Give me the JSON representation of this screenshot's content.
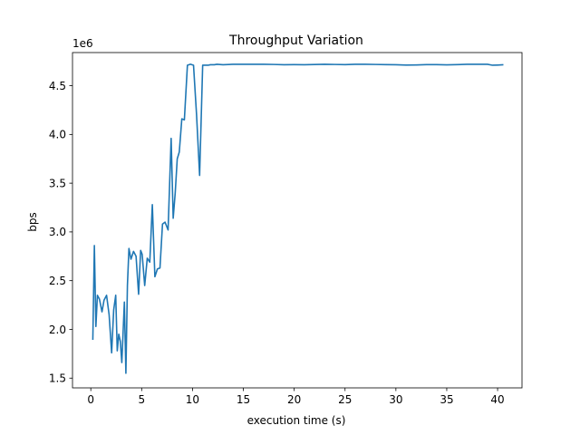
{
  "chart_data": {
    "type": "line",
    "title": "Throughput Variation",
    "xlabel": "execution time (s)",
    "ylabel": "bps",
    "y_offset_label": "1e6",
    "y_scale": 1000000,
    "xlim": [
      -1.8,
      42.4
    ],
    "ylim": [
      1400000,
      4840000
    ],
    "x_ticks": [
      0,
      5,
      10,
      15,
      20,
      25,
      30,
      35,
      40
    ],
    "y_ticks": [
      1500000,
      2000000,
      2500000,
      3000000,
      3500000,
      4000000,
      4500000
    ],
    "y_tick_labels": [
      "1.5",
      "2.0",
      "2.5",
      "3.0",
      "3.5",
      "4.0",
      "4.5"
    ],
    "grid": false,
    "line_color": "#1f77b4",
    "series": [
      {
        "x": [
          0.2,
          0.35,
          0.5,
          0.65,
          0.85,
          1.1,
          1.3,
          1.55,
          1.8,
          2.05,
          2.25,
          2.45,
          2.6,
          2.75,
          2.9,
          3.05,
          3.3,
          3.45,
          3.6,
          3.75,
          3.95,
          4.2,
          4.45,
          4.7,
          4.9,
          5.05,
          5.3,
          5.55,
          5.8,
          6.05,
          6.3,
          6.55,
          6.8,
          7.05,
          7.3,
          7.6,
          7.9,
          8.1,
          8.3,
          8.5,
          8.7,
          8.95,
          9.2,
          9.5,
          9.8,
          10.1,
          10.4,
          10.7,
          11.0,
          11.3,
          11.55,
          11.75,
          11.95,
          12.15,
          12.4,
          13,
          14,
          15,
          16,
          17,
          18,
          19,
          20,
          21,
          22,
          23,
          24,
          25,
          26,
          27,
          28,
          29,
          30,
          31,
          32,
          33,
          34,
          35,
          36,
          37,
          38,
          39,
          39.5,
          40,
          40.5
        ],
        "y": [
          1900000,
          2860000,
          2030000,
          2350000,
          2310000,
          2180000,
          2300000,
          2350000,
          2150000,
          1760000,
          2200000,
          2350000,
          1780000,
          1950000,
          1880000,
          1660000,
          2280000,
          1550000,
          2450000,
          2830000,
          2720000,
          2800000,
          2750000,
          2360000,
          2810000,
          2770000,
          2450000,
          2730000,
          2690000,
          3280000,
          2540000,
          2620000,
          2630000,
          3080000,
          3100000,
          3020000,
          3960000,
          3140000,
          3400000,
          3750000,
          3820000,
          4160000,
          4150000,
          4710000,
          4720000,
          4710000,
          4200000,
          3580000,
          4710000,
          4710000,
          4710000,
          4715000,
          4715000,
          4715000,
          4720000,
          4715000,
          4720000,
          4720000,
          4720000,
          4720000,
          4718000,
          4715000,
          4716000,
          4715000,
          4717000,
          4720000,
          4718000,
          4716000,
          4720000,
          4720000,
          4718000,
          4716000,
          4715000,
          4712000,
          4713000,
          4716000,
          4716000,
          4714000,
          4716000,
          4720000,
          4720000,
          4720000,
          4710000,
          4712000,
          4715000
        ]
      }
    ]
  }
}
